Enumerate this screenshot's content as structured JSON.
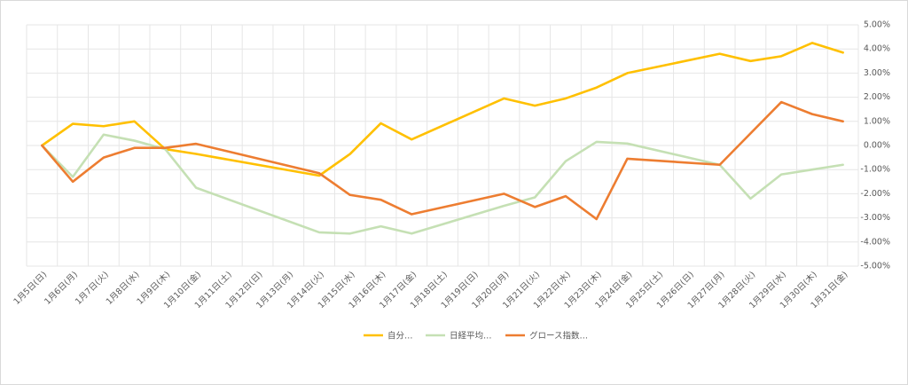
{
  "chart_data": {
    "type": "line",
    "categories": [
      "1月5日(日)",
      "1月6日(月)",
      "1月7日(火)",
      "1月8日(水)",
      "1月9日(木)",
      "1月10日(金)",
      "1月11日(土)",
      "1月12日(日)",
      "1月13日(月)",
      "1月14日(火)",
      "1月15日(水)",
      "1月16日(木)",
      "1月17日(金)",
      "1月18日(土)",
      "1月19日(日)",
      "1月20日(月)",
      "1月21日(火)",
      "1月22日(水)",
      "1月23日(木)",
      "1月24日(金)",
      "1月25日(土)",
      "1月26日(日)",
      "1月27日(月)",
      "1月28日(火)",
      "1月29日(水)",
      "1月30日(木)",
      "1月31日(金)"
    ],
    "series": [
      {
        "name": "自分…",
        "color": "#ffc000",
        "values": [
          0,
          0.9,
          0.8,
          1.0,
          -0.15,
          -0.35,
          null,
          null,
          null,
          -1.25,
          -0.35,
          0.92,
          0.25,
          null,
          null,
          1.95,
          1.65,
          1.95,
          2.4,
          3.0,
          null,
          null,
          3.8,
          3.5,
          3.7,
          4.25,
          3.85
        ]
      },
      {
        "name": "日経平均…",
        "color": "#c5e0b4",
        "values": [
          0,
          -1.3,
          0.45,
          0.2,
          -0.15,
          -1.75,
          null,
          null,
          null,
          -3.6,
          -3.65,
          -3.35,
          -3.65,
          null,
          null,
          -2.5,
          -2.15,
          -0.65,
          0.15,
          0.08,
          null,
          null,
          -0.8,
          -2.2,
          -1.2,
          -1.0,
          -0.8
        ]
      },
      {
        "name": "グロース指数…",
        "color": "#ed7d31",
        "values": [
          0,
          -1.5,
          -0.5,
          -0.1,
          -0.1,
          0.07,
          null,
          null,
          null,
          -1.15,
          -2.05,
          -2.25,
          -2.85,
          null,
          null,
          -2.0,
          -2.55,
          -2.1,
          -3.05,
          -0.55,
          null,
          null,
          -0.8,
          0.5,
          1.8,
          1.3,
          1.0
        ]
      }
    ],
    "connect_gaps": true,
    "ylim": [
      -5,
      5
    ],
    "yticks": [
      {
        "value": 5,
        "label": "5.00%"
      },
      {
        "value": 4,
        "label": "4.00%"
      },
      {
        "value": 3,
        "label": "3.00%"
      },
      {
        "value": 2,
        "label": "2.00%"
      },
      {
        "value": 1,
        "label": "1.00%"
      },
      {
        "value": 0,
        "label": "0.00%"
      },
      {
        "value": -1,
        "label": "-1.00%"
      },
      {
        "value": -2,
        "label": "-2.00%"
      },
      {
        "value": -3,
        "label": "-3.00%"
      },
      {
        "value": -4,
        "label": "-4.00%"
      },
      {
        "value": -5,
        "label": "-5.00%"
      }
    ],
    "grid": true,
    "legend": "bottom"
  }
}
